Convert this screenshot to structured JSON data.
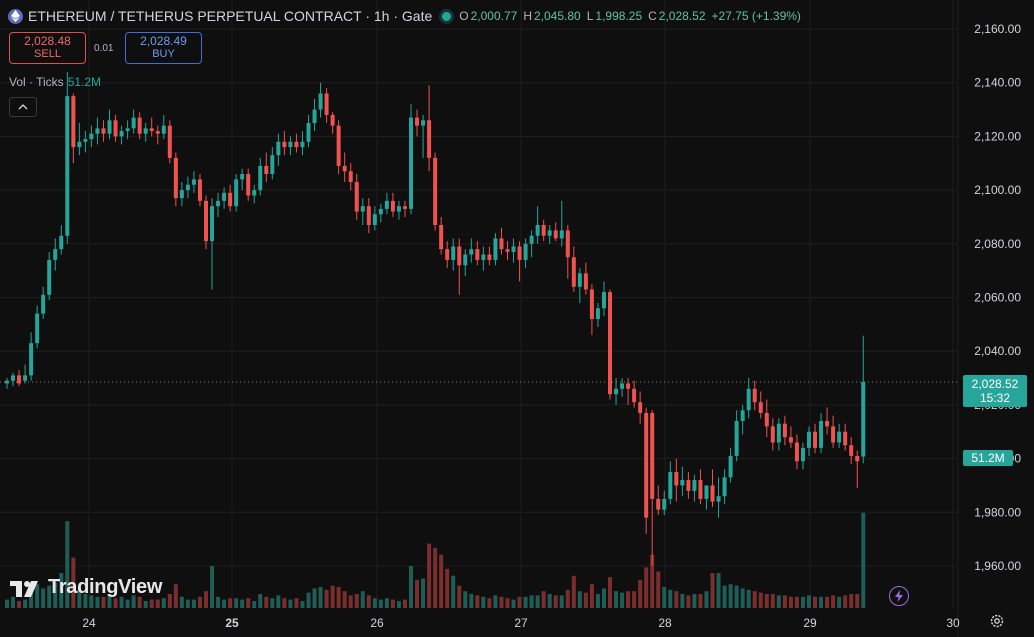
{
  "header": {
    "title": "ETHEREUM / TETHERUS PERPETUAL CONTRACT · 1h · Gate",
    "open_label": "O",
    "open": "2,000.77",
    "high_label": "H",
    "high": "2,045.80",
    "low_label": "L",
    "low": "1,998.25",
    "close_label": "C",
    "close": "2,028.52",
    "change": "+27.75 (+1.39%)"
  },
  "trade": {
    "sell_price": "2,028.48",
    "sell_label": "SELL",
    "spread": "0.01",
    "buy_price": "2,028.49",
    "buy_label": "BUY"
  },
  "volume_legend": {
    "label": "Vol · Ticks",
    "value": "51.2M"
  },
  "price_axis": [
    "2,160.00",
    "2,140.00",
    "2,120.00",
    "2,100.00",
    "2,080.00",
    "2,060.00",
    "2,040.00",
    "2,020.00",
    "2,000.00",
    "1,980.00",
    "1,960.00"
  ],
  "time_axis": [
    "24",
    "25",
    "26",
    "27",
    "28",
    "29",
    "30"
  ],
  "last_price": {
    "price": "2,028.52",
    "countdown": "15:32"
  },
  "volume_tag": "51.2M",
  "watermark": "TradingView",
  "colors": {
    "up": "#26a69a",
    "down": "#ef5350",
    "background": "#0f0f0f",
    "grid": "#1e1e1e"
  },
  "chart_data": {
    "type": "candlestick",
    "interval": "1h",
    "x_ticks": [
      "24",
      "25",
      "26",
      "27",
      "28",
      "29",
      "30"
    ],
    "ylim": [
      1950,
      2165
    ],
    "current_price": 2028.52,
    "volume_current": "51.2M",
    "candles": [
      [
        2028,
        2030,
        2026,
        2029,
        0.06
      ],
      [
        2029,
        2032,
        2027,
        2031,
        0.08
      ],
      [
        2031,
        2033,
        2027,
        2028,
        0.05
      ],
      [
        2029,
        2035,
        2028,
        2031,
        0.06
      ],
      [
        2031,
        2047,
        2029,
        2043,
        0.14
      ],
      [
        2043,
        2057,
        2041,
        2054,
        0.17
      ],
      [
        2054,
        2064,
        2052,
        2061,
        0.14
      ],
      [
        2061,
        2077,
        2059,
        2074,
        0.16
      ],
      [
        2074,
        2082,
        2070,
        2078,
        0.18
      ],
      [
        2078,
        2087,
        2076,
        2083,
        0.25
      ],
      [
        2083,
        2144,
        2080,
        2135,
        0.62
      ],
      [
        2135,
        2136,
        2110,
        2116,
        0.36
      ],
      [
        2116,
        2125,
        2113,
        2118,
        0.13
      ],
      [
        2118,
        2122,
        2114,
        2119,
        0.1
      ],
      [
        2119,
        2124,
        2116,
        2121,
        0.09
      ],
      [
        2121,
        2127,
        2117,
        2123,
        0.08
      ],
      [
        2123,
        2126,
        2118,
        2121,
        0.08
      ],
      [
        2121,
        2130,
        2119,
        2126,
        0.1
      ],
      [
        2126,
        2128,
        2118,
        2120,
        0.07
      ],
      [
        2120,
        2124,
        2117,
        2122,
        0.08
      ],
      [
        2122,
        2126,
        2119,
        2123,
        0.06
      ],
      [
        2123,
        2130,
        2121,
        2127,
        0.09
      ],
      [
        2127,
        2129,
        2119,
        2121,
        0.08
      ],
      [
        2121,
        2125,
        2118,
        2123,
        0.05
      ],
      [
        2123,
        2127,
        2120,
        2122,
        0.06
      ],
      [
        2122,
        2124,
        2117,
        2121,
        0.06
      ],
      [
        2121,
        2128,
        2119,
        2124,
        0.07
      ],
      [
        2124,
        2126,
        2110,
        2112,
        0.1
      ],
      [
        2112,
        2114,
        2094,
        2097,
        0.17
      ],
      [
        2097,
        2103,
        2094,
        2100,
        0.08
      ],
      [
        2100,
        2105,
        2097,
        2102,
        0.06
      ],
      [
        2102,
        2107,
        2099,
        2104,
        0.06
      ],
      [
        2104,
        2106,
        2094,
        2096,
        0.08
      ],
      [
        2096,
        2098,
        2078,
        2081,
        0.12
      ],
      [
        2081,
        2097,
        2063,
        2094,
        0.3
      ],
      [
        2094,
        2099,
        2090,
        2096,
        0.08
      ],
      [
        2096,
        2101,
        2093,
        2099,
        0.06
      ],
      [
        2099,
        2102,
        2092,
        2094,
        0.07
      ],
      [
        2094,
        2106,
        2092,
        2104,
        0.07
      ],
      [
        2104,
        2108,
        2100,
        2106,
        0.06
      ],
      [
        2106,
        2108,
        2096,
        2098,
        0.07
      ],
      [
        2098,
        2102,
        2095,
        2100,
        0.05
      ],
      [
        2100,
        2112,
        2098,
        2109,
        0.1
      ],
      [
        2109,
        2114,
        2103,
        2106,
        0.08
      ],
      [
        2106,
        2116,
        2104,
        2113,
        0.07
      ],
      [
        2113,
        2121,
        2109,
        2118,
        0.09
      ],
      [
        2118,
        2122,
        2113,
        2116,
        0.07
      ],
      [
        2116,
        2120,
        2113,
        2118,
        0.06
      ],
      [
        2118,
        2121,
        2114,
        2116,
        0.07
      ],
      [
        2116,
        2122,
        2113,
        2118,
        0.05
      ],
      [
        2118,
        2128,
        2116,
        2125,
        0.11
      ],
      [
        2125,
        2134,
        2122,
        2130,
        0.14
      ],
      [
        2130,
        2140,
        2127,
        2136,
        0.15
      ],
      [
        2136,
        2138,
        2125,
        2128,
        0.13
      ],
      [
        2128,
        2129,
        2121,
        2124,
        0.16
      ],
      [
        2124,
        2126,
        2106,
        2109,
        0.15
      ],
      [
        2109,
        2114,
        2103,
        2107,
        0.12
      ],
      [
        2107,
        2110,
        2100,
        2103,
        0.09
      ],
      [
        2103,
        2106,
        2089,
        2092,
        0.1
      ],
      [
        2092,
        2097,
        2087,
        2094,
        0.12
      ],
      [
        2094,
        2097,
        2084,
        2087,
        0.09
      ],
      [
        2087,
        2094,
        2085,
        2091,
        0.07
      ],
      [
        2091,
        2095,
        2088,
        2093,
        0.06
      ],
      [
        2093,
        2099,
        2091,
        2096,
        0.07
      ],
      [
        2096,
        2099,
        2090,
        2092,
        0.06
      ],
      [
        2092,
        2096,
        2089,
        2094,
        0.05
      ],
      [
        2094,
        2096,
        2090,
        2093,
        0.06
      ],
      [
        2093,
        2132,
        2091,
        2127,
        0.3
      ],
      [
        2127,
        2130,
        2120,
        2124,
        0.2
      ],
      [
        2124,
        2128,
        2112,
        2126,
        0.21
      ],
      [
        2126,
        2139,
        2107,
        2112,
        0.46
      ],
      [
        2112,
        2114,
        2085,
        2087,
        0.43
      ],
      [
        2087,
        2090,
        2076,
        2078,
        0.38
      ],
      [
        2078,
        2081,
        2071,
        2074,
        0.28
      ],
      [
        2074,
        2082,
        2070,
        2079,
        0.23
      ],
      [
        2079,
        2082,
        2061,
        2072,
        0.16
      ],
      [
        2072,
        2078,
        2068,
        2076,
        0.12
      ],
      [
        2076,
        2082,
        2073,
        2078,
        0.1
      ],
      [
        2078,
        2081,
        2072,
        2074,
        0.09
      ],
      [
        2074,
        2079,
        2070,
        2076,
        0.08
      ],
      [
        2076,
        2079,
        2072,
        2074,
        0.07
      ],
      [
        2074,
        2084,
        2072,
        2082,
        0.09
      ],
      [
        2082,
        2086,
        2076,
        2078,
        0.08
      ],
      [
        2078,
        2081,
        2074,
        2077,
        0.07
      ],
      [
        2077,
        2082,
        2073,
        2079,
        0.06
      ],
      [
        2079,
        2081,
        2066,
        2074,
        0.08
      ],
      [
        2074,
        2082,
        2071,
        2080,
        0.08
      ],
      [
        2080,
        2085,
        2075,
        2083,
        0.09
      ],
      [
        2083,
        2094,
        2080,
        2087,
        0.09
      ],
      [
        2087,
        2089,
        2081,
        2083,
        0.12
      ],
      [
        2083,
        2087,
        2080,
        2085,
        0.1
      ],
      [
        2085,
        2088,
        2081,
        2082,
        0.09
      ],
      [
        2082,
        2096,
        2079,
        2085,
        0.09
      ],
      [
        2085,
        2087,
        2067,
        2075,
        0.13
      ],
      [
        2075,
        2079,
        2062,
        2064,
        0.23
      ],
      [
        2064,
        2071,
        2058,
        2069,
        0.12
      ],
      [
        2069,
        2073,
        2061,
        2063,
        0.11
      ],
      [
        2063,
        2065,
        2046,
        2052,
        0.17
      ],
      [
        2052,
        2058,
        2049,
        2056,
        0.1
      ],
      [
        2056,
        2066,
        2053,
        2062,
        0.14
      ],
      [
        2062,
        2063,
        2022,
        2024,
        0.22
      ],
      [
        2024,
        2030,
        2020,
        2026,
        0.12
      ],
      [
        2026,
        2030,
        2023,
        2028,
        0.11
      ],
      [
        2028,
        2030,
        2020,
        2026,
        0.12
      ],
      [
        2026,
        2029,
        2019,
        2021,
        0.12
      ],
      [
        2021,
        2025,
        2013,
        2017,
        0.2
      ],
      [
        2017,
        2019,
        1972,
        1978,
        0.29
      ],
      [
        2017,
        2018,
        1960,
        1985,
        0.38
      ],
      [
        1985,
        1990,
        1979,
        1981,
        0.26
      ],
      [
        1981,
        1988,
        1979,
        1985,
        0.15
      ],
      [
        1985,
        1999,
        1983,
        1995,
        0.13
      ],
      [
        1995,
        2000,
        1984,
        1990,
        0.12
      ],
      [
        1990,
        1997,
        1986,
        1992,
        0.1
      ],
      [
        1992,
        1995,
        1985,
        1988,
        0.09
      ],
      [
        1988,
        1994,
        1984,
        1992,
        0.1
      ],
      [
        1992,
        1996,
        1983,
        1985,
        0.1
      ],
      [
        1985,
        1990,
        1981,
        1990,
        0.12
      ],
      [
        1990,
        1996,
        1982,
        1984,
        0.25
      ],
      [
        1984,
        1993,
        1978,
        1986,
        0.25
      ],
      [
        1986,
        1996,
        1983,
        1993,
        0.16
      ],
      [
        1993,
        2004,
        1991,
        2001,
        0.17
      ],
      [
        2001,
        2018,
        1999,
        2014,
        0.16
      ],
      [
        2014,
        2020,
        2009,
        2018,
        0.14
      ],
      [
        2018,
        2030,
        2015,
        2026,
        0.13
      ],
      [
        2026,
        2029,
        2018,
        2021,
        0.12
      ],
      [
        2021,
        2025,
        2015,
        2017,
        0.11
      ],
      [
        2017,
        2022,
        2008,
        2012,
        0.1
      ],
      [
        2012,
        2015,
        2003,
        2006,
        0.1
      ],
      [
        2006,
        2015,
        2003,
        2013,
        0.09
      ],
      [
        2013,
        2016,
        2005,
        2008,
        0.09
      ],
      [
        2008,
        2012,
        2004,
        2006,
        0.08
      ],
      [
        2006,
        2009,
        1996,
        1999,
        0.08
      ],
      [
        1999,
        2006,
        1996,
        2004,
        0.08
      ],
      [
        2004,
        2012,
        2001,
        2010,
        0.09
      ],
      [
        2010,
        2013,
        2002,
        2004,
        0.08
      ],
      [
        2004,
        2017,
        2002,
        2014,
        0.08
      ],
      [
        2014,
        2019,
        2009,
        2012,
        0.08
      ],
      [
        2012,
        2016,
        2004,
        2006,
        0.09
      ],
      [
        2006,
        2013,
        2004,
        2010,
        0.08
      ],
      [
        2010,
        2013,
        2003,
        2005,
        0.09
      ],
      [
        2005,
        2008,
        1998,
        2001,
        0.1
      ],
      [
        2001,
        2003,
        1989,
        1999,
        0.1
      ],
      [
        2000.77,
        2045.8,
        1998.25,
        2028.52,
        0.68
      ]
    ]
  }
}
